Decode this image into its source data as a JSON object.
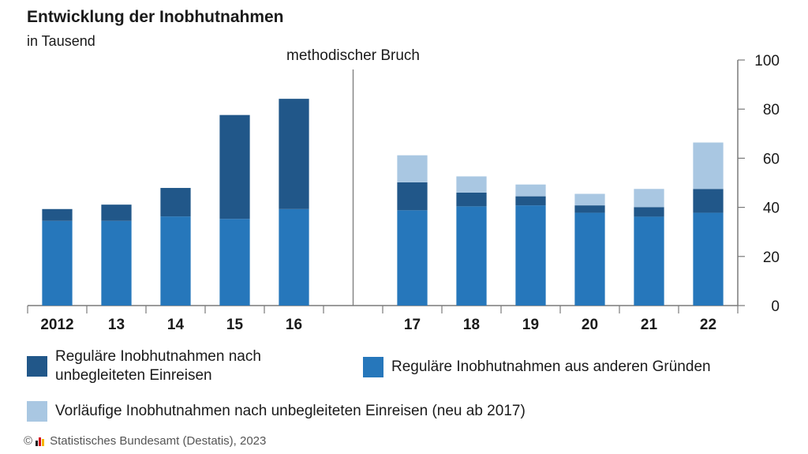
{
  "title": "Entwicklung der Inobhutnahmen",
  "subtitle": "in Tausend",
  "break_label": "methodischer Bruch",
  "footer": {
    "copyright": "©",
    "source": "Statistisches Bundesamt (Destatis), 2023"
  },
  "colors": {
    "unbegleitet": "#215789",
    "andere": "#2677bb",
    "vorlaeufig": "#a9c7e2",
    "axis": "#7a7a7a",
    "grid_text": "#1a1a1a"
  },
  "legend": [
    {
      "key": "unbegleitet",
      "label_lines": [
        "Reguläre Inobhutnahmen nach",
        "unbegleiteten Einreisen"
      ]
    },
    {
      "key": "andere",
      "label_lines": [
        "Reguläre Inobhutnahmen aus anderen Gründen"
      ]
    },
    {
      "key": "vorlaeufig",
      "label_lines": [
        "Vorläufige Inobhutnahmen nach unbegleiteten Einreisen (neu ab 2017)"
      ]
    }
  ],
  "chart_data": {
    "type": "bar",
    "stacked": true,
    "title": "Entwicklung der Inobhutnahmen",
    "subtitle": "in Tausend",
    "categories": [
      "2012",
      "13",
      "14",
      "15",
      "16",
      "17",
      "18",
      "19",
      "20",
      "21",
      "22"
    ],
    "series": [
      {
        "name": "Reguläre Inobhutnahmen aus anderen Gründen",
        "key": "andere",
        "values": [
          34.5,
          34.5,
          36.3,
          35.3,
          39.3,
          38.8,
          40.4,
          40.8,
          37.8,
          36.2,
          37.8
        ]
      },
      {
        "name": "Reguläre Inobhutnahmen nach unbegleiteten Einreisen",
        "key": "unbegleitet",
        "values": [
          4.8,
          6.6,
          11.6,
          42.3,
          44.9,
          11.4,
          5.6,
          3.7,
          3.0,
          3.9,
          9.7
        ]
      },
      {
        "name": "Vorläufige Inobhutnahmen nach unbegleiteten Einreisen (neu ab 2017)",
        "key": "vorlaeufig",
        "values": [
          0,
          0,
          0,
          0,
          0,
          11.0,
          6.6,
          4.8,
          4.7,
          7.4,
          18.9
        ]
      }
    ],
    "ylim": [
      0,
      100
    ],
    "yticks": [
      0,
      20,
      40,
      60,
      80,
      100
    ],
    "y_axis_side": "right",
    "break_after_category": "16",
    "grid": false,
    "legend_position": "bottom"
  }
}
